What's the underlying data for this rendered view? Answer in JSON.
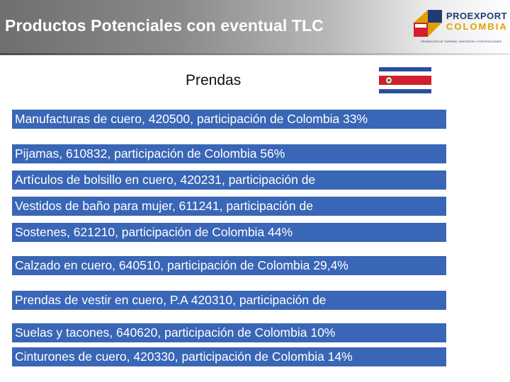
{
  "header": {
    "title": "Productos Potenciales con eventual TLC"
  },
  "logo": {
    "name": "PROEXPORT",
    "country": "COLOMBIA",
    "tagline": "PROMOCIÓN DE TURISMO, INVERSIÓN Y EXPORTACIONES"
  },
  "subtitle": "Prendas",
  "flag": {
    "icon": "costa-rica-flag-icon",
    "colors": {
      "blue": "#2b4f9e",
      "white": "#ffffff",
      "red": "#d0202b"
    }
  },
  "items": [
    "Manufacturas de cuero, 420500, participación de Colombia 33%",
    "Pijamas, 610832, participación de Colombia 56%",
    "Artículos de bolsillo en cuero, 420231, participación de",
    "Vestidos de baño para mujer, 611241, participación de",
    "Sostenes, 621210, participación de Colombia 44%",
    "Calzado en cuero, 640510,  participación de Colombia 29,4%",
    "Prendas de vestir en cuero, P.A 420310, participación de",
    "Suelas y tacones, 640620, participación de Colombia 10%",
    "Cinturones de cuero, 420330, participación de Colombia 14%"
  ],
  "colors": {
    "item_bg": "#3966b6",
    "item_text": "#ffffff"
  }
}
